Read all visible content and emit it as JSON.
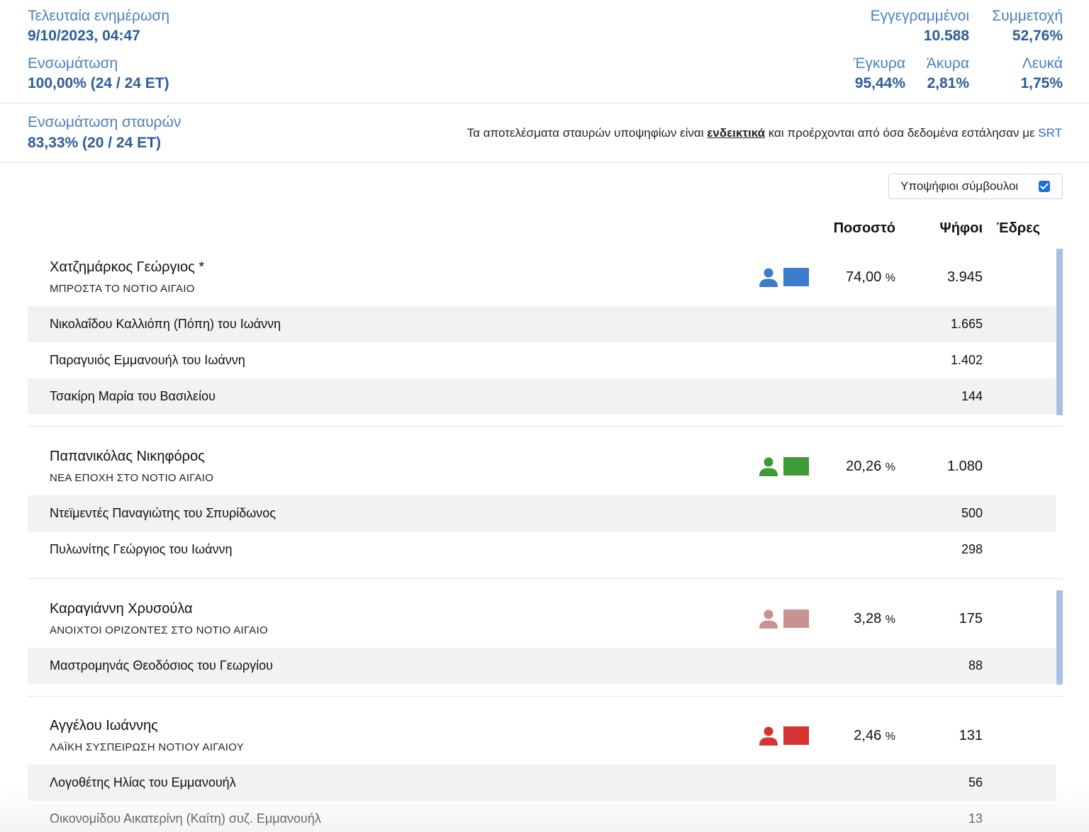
{
  "summary": {
    "last_update_label": "Τελευταία ενημέρωση",
    "last_update_value": "9/10/2023, 04:47",
    "incorporation_label": "Ενσωμάτωση",
    "incorporation_value": "100,00% (24 / 24 ΕΤ)",
    "registered_label": "Εγγεγραμμένοι",
    "registered_value": "10.588",
    "turnout_label": "Συμμετοχή",
    "turnout_value": "52,76%",
    "valid_label": "Έγκυρα",
    "valid_value": "95,44%",
    "invalid_label": "Άκυρα",
    "invalid_value": "2,81%",
    "blank_label": "Λευκά",
    "blank_value": "1,75%"
  },
  "crosses": {
    "label": "Ενσωμάτωση σταυρών",
    "value": "83,33% (20 / 24 ΕΤ)",
    "note_before": "Τα αποτελέσματα σταυρών υποψηφίων είναι ",
    "note_bold": "ενδεικτικά",
    "note_after": " και προέρχονται από όσα δεδομένα εστάλησαν με ",
    "note_link": "SRT"
  },
  "toggle": {
    "label": "Υποψήφιοι σύμβουλοι",
    "checked": true
  },
  "columns": {
    "percent": "Ποσοστό",
    "votes": "Ψήφοι",
    "seats": "Έδρες"
  },
  "candidates": [
    {
      "name": "Χατζημάρκος Γεώργιος *",
      "party": "ΜΠΡΟΣΤΑ ΤΟ ΝΟΤΙΟ ΑΙΓΑΙΟ",
      "color": "#3b7ccc",
      "percent": "74,00",
      "percent_unit": "%",
      "votes": "3.945",
      "councillors": [
        {
          "name": "Νικολαΐδου Καλλιόπη (Πόπη) του Ιωάννη",
          "votes": "1.665"
        },
        {
          "name": "Παραγυιός Εμμανουήλ του Ιωάννη",
          "votes": "1.402"
        },
        {
          "name": "Τσακίρη Μαρία του Βασιλείου",
          "votes": "144"
        }
      ]
    },
    {
      "name": "Παπανικόλας Νικηφόρος",
      "party": "ΝΕΑ ΕΠΟΧΗ ΣΤΟ ΝΟΤΙΟ ΑΙΓΑΙΟ",
      "color": "#3e9a36",
      "percent": "20,26",
      "percent_unit": "%",
      "votes": "1.080",
      "councillors": [
        {
          "name": "Ντεϊμεντές Παναγιώτης του Σπυρίδωνος",
          "votes": "500"
        },
        {
          "name": "Πυλωνίτης Γεώργιος του Ιωάννη",
          "votes": "298"
        }
      ]
    },
    {
      "name": "Καραγιάννη Χρυσούλα",
      "party": "ΑΝΟΙΧΤΟΙ ΟΡΙΖΟΝΤΕΣ ΣΤΟ ΝΟΤΙΟ ΑΙΓΑΙΟ",
      "color": "#c79391",
      "percent": "3,28",
      "percent_unit": "%",
      "votes": "175",
      "councillors": [
        {
          "name": "Μαστρομηνάς Θεοδόσιος του Γεωργίου",
          "votes": "88"
        }
      ]
    },
    {
      "name": "Αγγέλου Ιωάννης",
      "party": "ΛΑΪΚΗ ΣΥΣΠΕΙΡΩΣΗ ΝΟΤΙΟΥ ΑΙΓΑΙΟΥ",
      "color": "#d63333",
      "percent": "2,46",
      "percent_unit": "%",
      "votes": "131",
      "councillors": [
        {
          "name": "Λογοθέτης Ηλίας του Εμμανουήλ",
          "votes": "56"
        },
        {
          "name": "Οικονομίδου Αικατερίνη (Καίτη) συζ. Εμμανουήλ",
          "votes": "13"
        }
      ]
    }
  ]
}
